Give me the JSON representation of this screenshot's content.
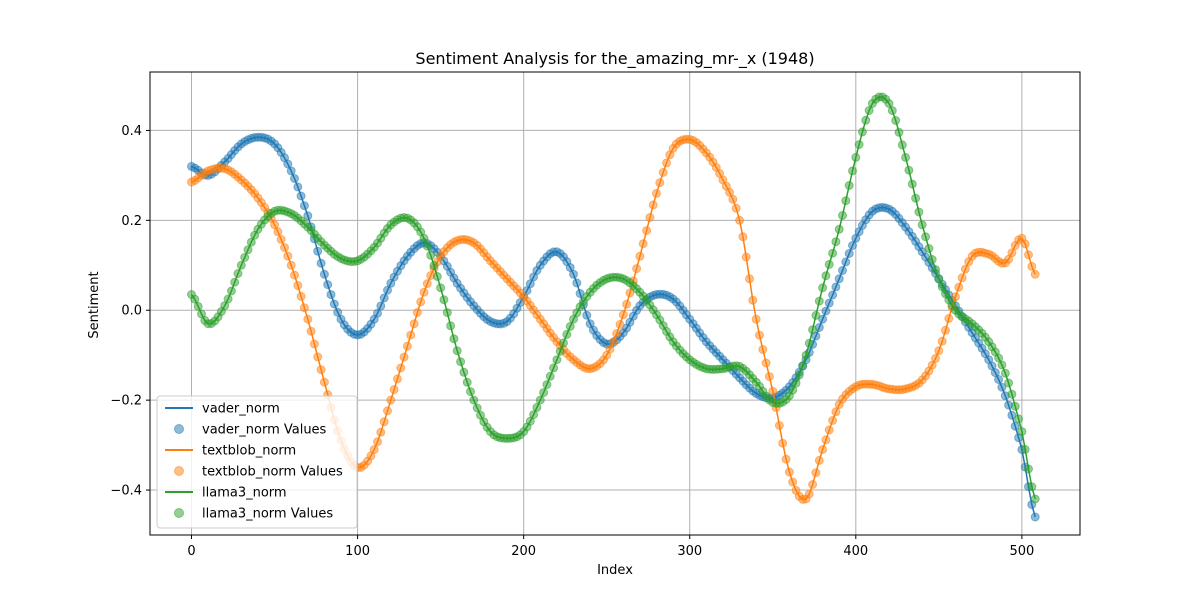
{
  "chart_data": {
    "type": "line",
    "title": "Sentiment Analysis for the_amazing_mr-_x (1948)",
    "xlabel": "Index",
    "ylabel": "Sentiment",
    "xlim": [
      -25,
      535
    ],
    "ylim": [
      -0.5,
      0.53
    ],
    "xticks": [
      0,
      100,
      200,
      300,
      400,
      500
    ],
    "yticks": [
      -0.4,
      -0.2,
      0.0,
      0.2,
      0.4
    ],
    "xtick_labels": [
      "0",
      "100",
      "200",
      "300",
      "400",
      "500"
    ],
    "ytick_labels": [
      "−0.4",
      "−0.2",
      "0.0",
      "0.2",
      "0.4"
    ],
    "grid": true,
    "legend_placement": "lower-left",
    "legend": [
      {
        "label": "vader_norm",
        "kind": "line",
        "color": "#1f77b4"
      },
      {
        "label": "vader_norm Values",
        "kind": "marker",
        "color": "#1f77b4"
      },
      {
        "label": "textblob_norm",
        "kind": "line",
        "color": "#ff7f0e"
      },
      {
        "label": "textblob_norm Values",
        "kind": "marker",
        "color": "#ff7f0e"
      },
      {
        "label": "llama3_norm",
        "kind": "line",
        "color": "#2ca02c"
      },
      {
        "label": "llama3_norm Values",
        "kind": "marker",
        "color": "#2ca02c"
      }
    ],
    "series": [
      {
        "name": "vader_norm",
        "color": "#1f77b4",
        "x": [
          0,
          10,
          20,
          30,
          40,
          50,
          60,
          70,
          80,
          90,
          100,
          110,
          120,
          130,
          140,
          150,
          160,
          170,
          180,
          190,
          200,
          210,
          220,
          230,
          240,
          250,
          260,
          270,
          280,
          290,
          300,
          310,
          320,
          330,
          340,
          350,
          360,
          370,
          380,
          390,
          400,
          410,
          420,
          430,
          440,
          450,
          460,
          470,
          480,
          490,
          500,
          508
        ],
        "y": [
          0.32,
          0.3,
          0.33,
          0.37,
          0.385,
          0.37,
          0.31,
          0.21,
          0.08,
          -0.02,
          -0.055,
          -0.02,
          0.06,
          0.12,
          0.15,
          0.12,
          0.06,
          0.01,
          -0.025,
          -0.025,
          0.03,
          0.1,
          0.13,
          0.08,
          -0.03,
          -0.075,
          -0.05,
          0.01,
          0.035,
          0.025,
          -0.02,
          -0.07,
          -0.11,
          -0.15,
          -0.185,
          -0.195,
          -0.17,
          -0.11,
          -0.02,
          0.07,
          0.16,
          0.22,
          0.225,
          0.185,
          0.13,
          0.07,
          0.01,
          -0.05,
          -0.11,
          -0.19,
          -0.31,
          -0.46
        ]
      },
      {
        "name": "textblob_norm",
        "color": "#ff7f0e",
        "x": [
          0,
          10,
          20,
          30,
          40,
          50,
          60,
          70,
          80,
          90,
          100,
          110,
          120,
          130,
          140,
          150,
          160,
          170,
          180,
          190,
          200,
          210,
          220,
          230,
          240,
          250,
          260,
          270,
          280,
          290,
          300,
          310,
          320,
          330,
          340,
          350,
          360,
          370,
          380,
          390,
          400,
          410,
          420,
          430,
          440,
          450,
          460,
          470,
          480,
          490,
          500,
          508
        ],
        "y": [
          0.285,
          0.31,
          0.315,
          0.29,
          0.25,
          0.19,
          0.1,
          -0.02,
          -0.16,
          -0.29,
          -0.35,
          -0.31,
          -0.2,
          -0.08,
          0.04,
          0.12,
          0.155,
          0.15,
          0.11,
          0.07,
          0.03,
          -0.02,
          -0.07,
          -0.11,
          -0.13,
          -0.1,
          -0.01,
          0.12,
          0.26,
          0.36,
          0.38,
          0.35,
          0.29,
          0.2,
          -0.02,
          -0.18,
          -0.36,
          -0.42,
          -0.31,
          -0.21,
          -0.17,
          -0.165,
          -0.175,
          -0.175,
          -0.155,
          -0.09,
          0.03,
          0.12,
          0.125,
          0.105,
          0.16,
          0.08
        ]
      },
      {
        "name": "llama3_norm",
        "color": "#2ca02c",
        "x": [
          0,
          10,
          20,
          30,
          40,
          50,
          60,
          70,
          80,
          90,
          100,
          110,
          120,
          130,
          140,
          150,
          160,
          170,
          180,
          190,
          200,
          210,
          220,
          230,
          240,
          250,
          260,
          270,
          280,
          290,
          300,
          310,
          320,
          330,
          340,
          350,
          360,
          370,
          380,
          390,
          400,
          410,
          420,
          430,
          440,
          450,
          460,
          470,
          480,
          490,
          500,
          508
        ],
        "y": [
          0.035,
          -0.03,
          0.01,
          0.1,
          0.18,
          0.22,
          0.215,
          0.185,
          0.145,
          0.115,
          0.11,
          0.14,
          0.19,
          0.205,
          0.16,
          0.05,
          -0.09,
          -0.2,
          -0.27,
          -0.285,
          -0.27,
          -0.2,
          -0.11,
          -0.02,
          0.04,
          0.07,
          0.07,
          0.04,
          -0.01,
          -0.07,
          -0.11,
          -0.13,
          -0.13,
          -0.125,
          -0.16,
          -0.205,
          -0.19,
          -0.1,
          0.05,
          0.18,
          0.34,
          0.46,
          0.46,
          0.34,
          0.19,
          0.07,
          0.0,
          -0.03,
          -0.07,
          -0.14,
          -0.27,
          -0.42
        ]
      }
    ]
  }
}
